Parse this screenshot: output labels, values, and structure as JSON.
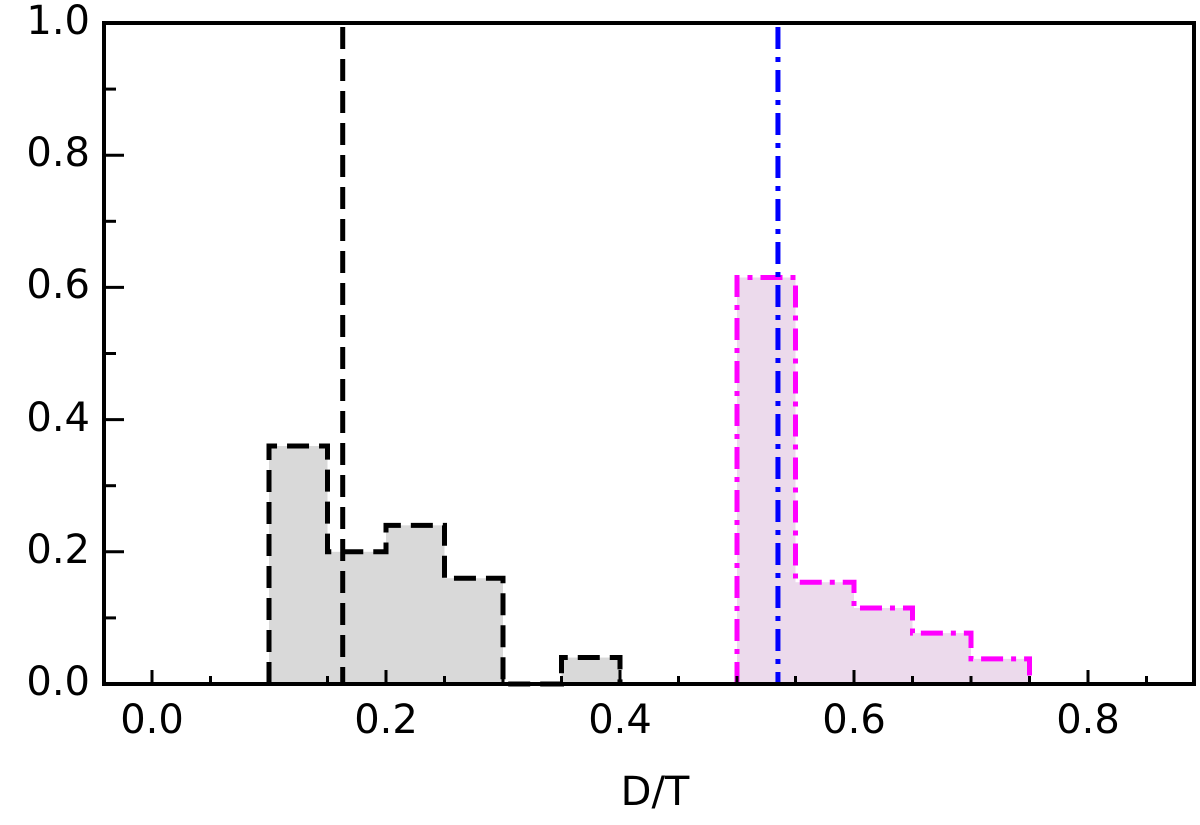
{
  "chart_data": {
    "type": "bar",
    "subtype": "step-histogram",
    "title": "",
    "xlabel": "D/T",
    "ylabel": "",
    "xlim": [
      -0.04,
      0.89
    ],
    "ylim": [
      0.0,
      1.0
    ],
    "xticks": [
      "0.0",
      "0.2",
      "0.4",
      "0.6",
      "0.8"
    ],
    "yticks": [
      "0.0",
      "0.2",
      "0.4",
      "0.6",
      "0.8",
      "1.0"
    ],
    "grid": false,
    "legend": null,
    "bin_width": 0.05,
    "series": [
      {
        "name": "gray-dashed-histogram",
        "style": "dashed",
        "edge_color": "#000000",
        "fill_color": "#d9d9d9",
        "bins": [
          {
            "x0": 0.1,
            "x1": 0.15,
            "value": 0.36
          },
          {
            "x0": 0.15,
            "x1": 0.2,
            "value": 0.2
          },
          {
            "x0": 0.2,
            "x1": 0.25,
            "value": 0.24
          },
          {
            "x0": 0.25,
            "x1": 0.3,
            "value": 0.16
          },
          {
            "x0": 0.3,
            "x1": 0.35,
            "value": 0.0
          },
          {
            "x0": 0.35,
            "x1": 0.4,
            "value": 0.04
          }
        ],
        "median_line": {
          "x": 0.163,
          "style": "dashed",
          "color": "#000000"
        }
      },
      {
        "name": "magenta-dashdot-histogram",
        "style": "dashdot",
        "edge_color": "#ff00ff",
        "fill_color": "#ecdaec",
        "bins": [
          {
            "x0": 0.5,
            "x1": 0.55,
            "value": 0.615
          },
          {
            "x0": 0.55,
            "x1": 0.6,
            "value": 0.154
          },
          {
            "x0": 0.6,
            "x1": 0.65,
            "value": 0.115
          },
          {
            "x0": 0.65,
            "x1": 0.7,
            "value": 0.077
          },
          {
            "x0": 0.7,
            "x1": 0.75,
            "value": 0.038
          }
        ],
        "median_line": {
          "x": 0.535,
          "style": "dashdot",
          "color": "#0000ff"
        }
      }
    ]
  }
}
